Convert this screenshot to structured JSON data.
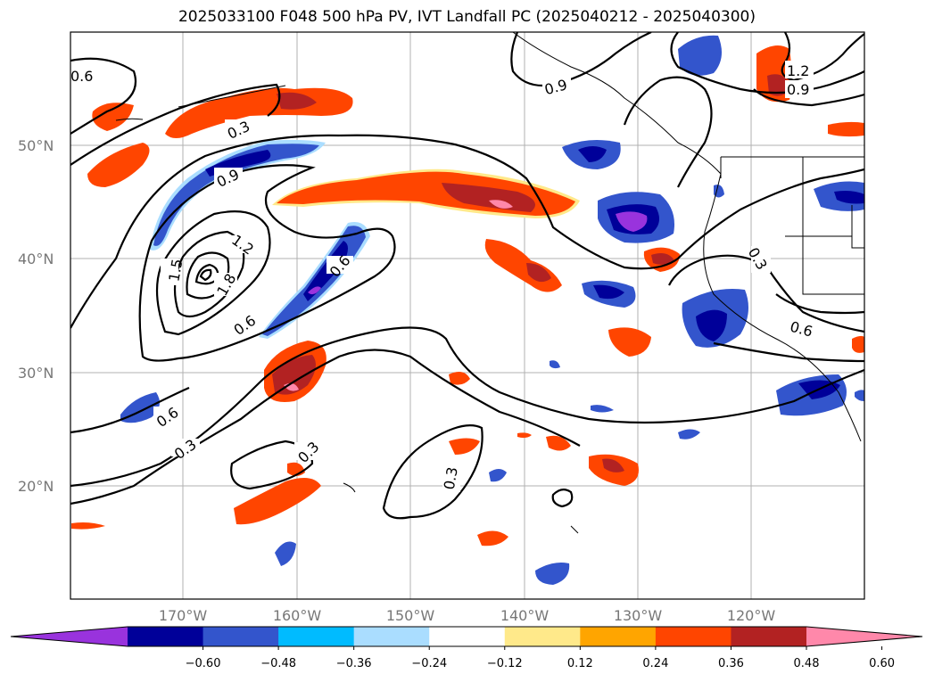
{
  "title": "2025033100 F048 500 hPa PV, IVT Landfall PC (2025040212 - 2025040300)",
  "lat_labels": [
    "50°N",
    "40°N",
    "30°N",
    "20°N"
  ],
  "lon_labels": [
    "170°W",
    "160°W",
    "150°W",
    "140°W",
    "130°W",
    "120°W"
  ],
  "contour_labels": [
    "0.6",
    "0.3",
    "0.9",
    "1.2",
    "1.5",
    "1.8",
    "0.6",
    "0.6",
    "0.6",
    "0.3",
    "0.3",
    "0.3",
    "0.9",
    "1.2",
    "0.9",
    "0.3",
    "0.6"
  ],
  "colorbar": {
    "colors": [
      "#9933dd",
      "#000099",
      "#3355cc",
      "#00bbff",
      "#aaddff",
      "#ffffff",
      "#ffe98a",
      "#ffa500",
      "#ff4500",
      "#b22222",
      "#ff88aa"
    ],
    "ticks": [
      "−0.60",
      "−0.48",
      "−0.36",
      "−0.24",
      "−0.12",
      "0.12",
      "0.24",
      "0.36",
      "0.48",
      "0.60"
    ]
  }
}
